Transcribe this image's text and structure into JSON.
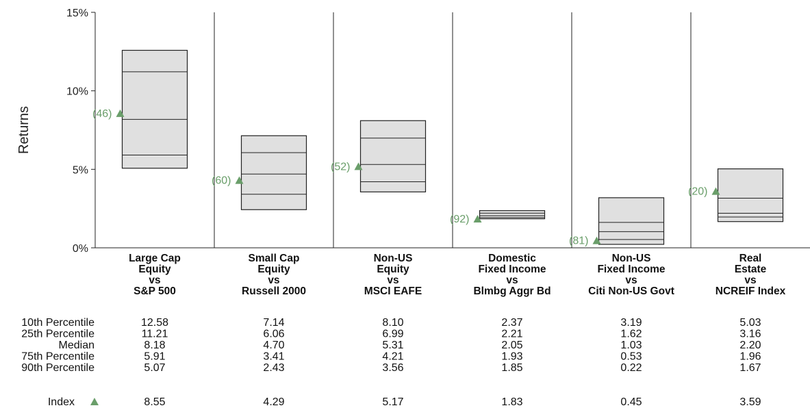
{
  "chart_data": {
    "type": "floating-bar",
    "ylabel": "Returns",
    "ylim": [
      0,
      15
    ],
    "yticks": [
      "0%",
      "5%",
      "10%",
      "15%"
    ],
    "yticks_values": [
      0,
      5,
      10,
      15
    ],
    "colors": {
      "box": "#e0e0e0",
      "marker": "#6a9e6a",
      "rank": "#6a9e6a"
    },
    "categories": [
      [
        "Large Cap",
        "Equity",
        "vs",
        "S&P 500"
      ],
      [
        "Small Cap",
        "Equity",
        "vs",
        "Russell 2000"
      ],
      [
        "Non-US",
        "Equity",
        "vs",
        "MSCI EAFE"
      ],
      [
        "Domestic",
        "Fixed Income",
        "vs",
        "Blmbg Aggr Bd"
      ],
      [
        "Non-US",
        "Fixed Income",
        "vs",
        "Citi Non-US Govt"
      ],
      [
        "Real",
        "Estate",
        "vs",
        "NCREIF Index"
      ]
    ],
    "table": {
      "row_labels": [
        "10th Percentile",
        "25th Percentile",
        "Median",
        "75th Percentile",
        "90th Percentile"
      ],
      "rows": [
        [
          "12.58",
          "7.14",
          "8.10",
          "2.37",
          "3.19",
          "5.03"
        ],
        [
          "11.21",
          "6.06",
          "6.99",
          "2.21",
          "1.62",
          "3.16"
        ],
        [
          "8.18",
          "4.70",
          "5.31",
          "2.05",
          "1.03",
          "2.20"
        ],
        [
          "5.91",
          "3.41",
          "4.21",
          "1.93",
          "0.53",
          "1.96"
        ],
        [
          "5.07",
          "2.43",
          "3.56",
          "1.85",
          "0.22",
          "1.67"
        ]
      ],
      "index_label": "Index",
      "index_values": [
        "8.55",
        "4.29",
        "5.17",
        "1.83",
        "0.45",
        "3.59"
      ]
    },
    "ranks": [
      "(46)",
      "(60)",
      "(52)",
      "(92)",
      "(81)",
      "(20)"
    ]
  }
}
